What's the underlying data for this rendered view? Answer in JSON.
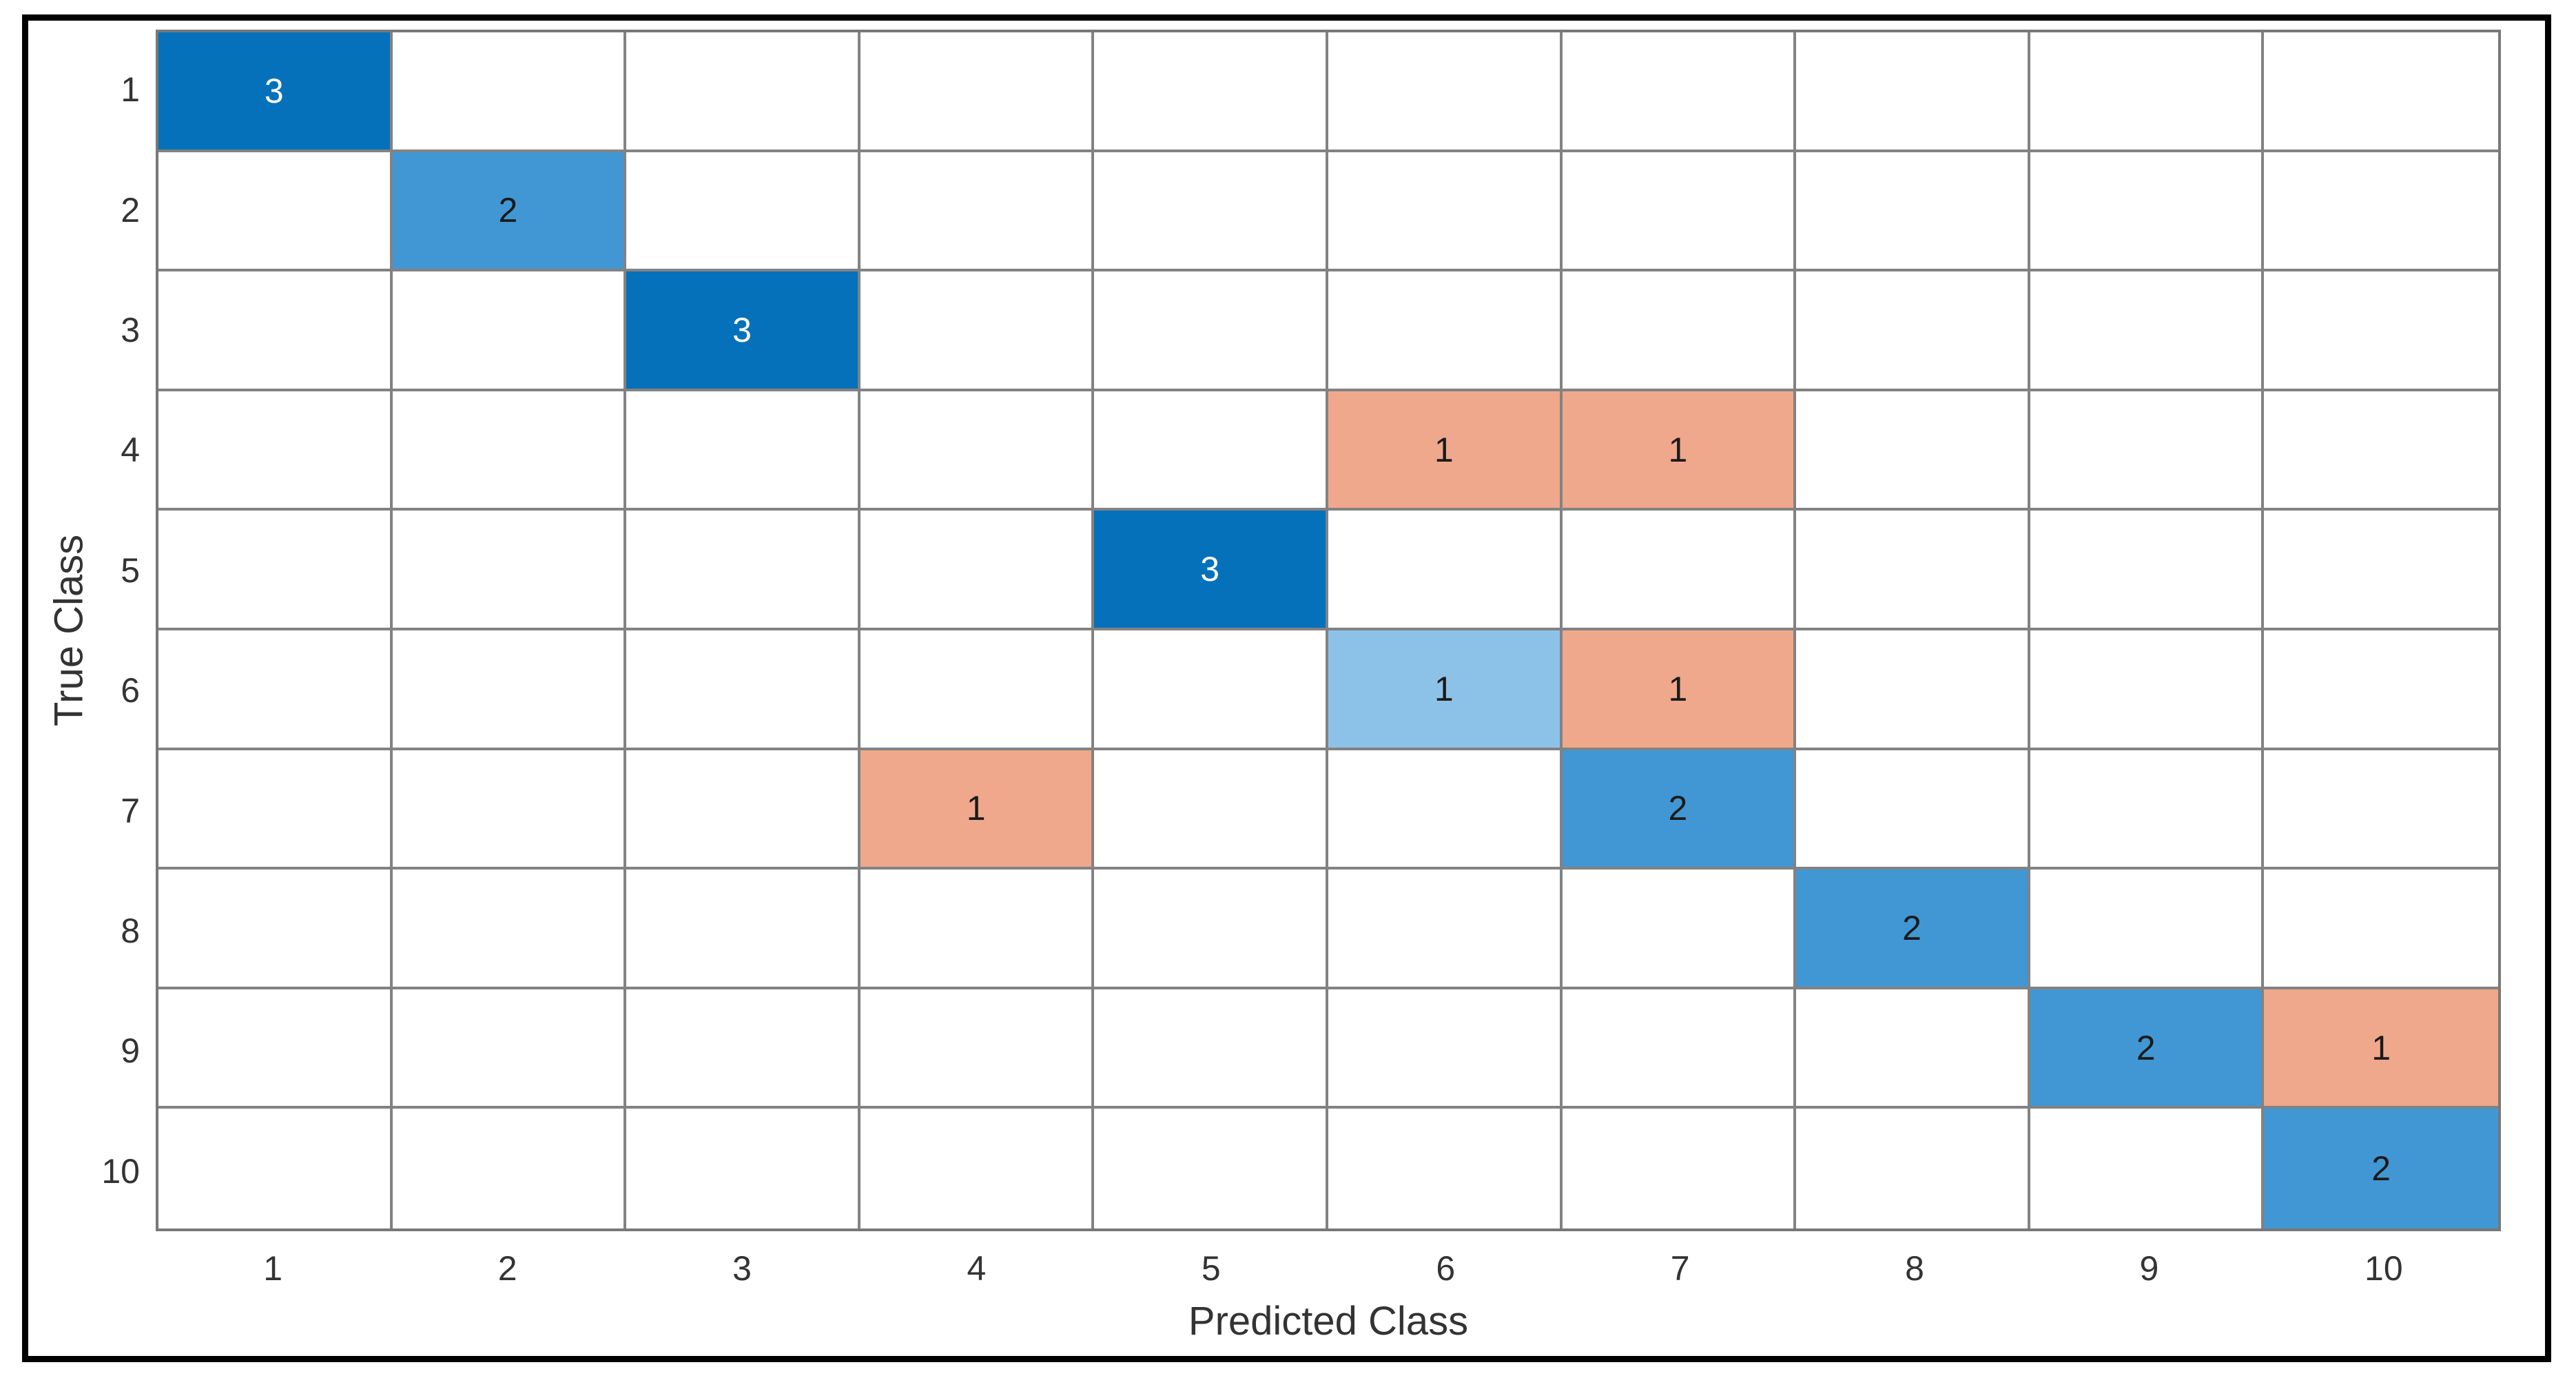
{
  "figure": {
    "background": "#ffffff",
    "border_color": "#000000"
  },
  "chart_data": {
    "type": "heatmap",
    "variant": "confusion-matrix",
    "title": "",
    "xlabel": "Predicted Class",
    "ylabel": "True Class",
    "x_ticks": [
      "1",
      "2",
      "3",
      "4",
      "5",
      "6",
      "7",
      "8",
      "9",
      "10"
    ],
    "y_ticks": [
      "1",
      "2",
      "3",
      "4",
      "5",
      "6",
      "7",
      "8",
      "9",
      "10"
    ],
    "n_rows": 10,
    "n_cols": 10,
    "axis_ranges": {
      "x": [
        1,
        10
      ],
      "y": [
        1,
        10
      ]
    },
    "grid": true,
    "legend": false,
    "cells": [
      {
        "row": 1,
        "col": 1,
        "value": 3,
        "color_key": "diagonal_3",
        "text_style": "light"
      },
      {
        "row": 2,
        "col": 2,
        "value": 2,
        "color_key": "diagonal_2",
        "text_style": "dark"
      },
      {
        "row": 3,
        "col": 3,
        "value": 3,
        "color_key": "diagonal_3",
        "text_style": "light"
      },
      {
        "row": 4,
        "col": 6,
        "value": 1,
        "color_key": "off_diagonal_1",
        "text_style": "dark"
      },
      {
        "row": 4,
        "col": 7,
        "value": 1,
        "color_key": "off_diagonal_1",
        "text_style": "dark"
      },
      {
        "row": 5,
        "col": 5,
        "value": 3,
        "color_key": "diagonal_3",
        "text_style": "light"
      },
      {
        "row": 6,
        "col": 6,
        "value": 1,
        "color_key": "diagonal_1",
        "text_style": "dark"
      },
      {
        "row": 6,
        "col": 7,
        "value": 1,
        "color_key": "off_diagonal_1",
        "text_style": "dark"
      },
      {
        "row": 7,
        "col": 4,
        "value": 1,
        "color_key": "off_diagonal_1",
        "text_style": "dark"
      },
      {
        "row": 7,
        "col": 7,
        "value": 2,
        "color_key": "diagonal_2",
        "text_style": "dark"
      },
      {
        "row": 8,
        "col": 8,
        "value": 2,
        "color_key": "diagonal_2",
        "text_style": "dark"
      },
      {
        "row": 9,
        "col": 9,
        "value": 2,
        "color_key": "diagonal_2",
        "text_style": "dark"
      },
      {
        "row": 9,
        "col": 10,
        "value": 1,
        "color_key": "off_diagonal_1",
        "text_style": "dark"
      },
      {
        "row": 10,
        "col": 10,
        "value": 2,
        "color_key": "diagonal_2",
        "text_style": "dark"
      }
    ],
    "colors": {
      "diagonal_3": "#0571ba",
      "diagonal_2": "#4197d3",
      "diagonal_1": "#8dc2e8",
      "off_diagonal_1": "#efa88b",
      "empty_cell": "#ffffff",
      "grid_line": "#828282",
      "axes_frame": "#787878",
      "tick_label": "#333333",
      "axis_label": "#333333",
      "cell_text_dark": "#1a1a1a",
      "cell_text_light": "#ffffff"
    }
  }
}
